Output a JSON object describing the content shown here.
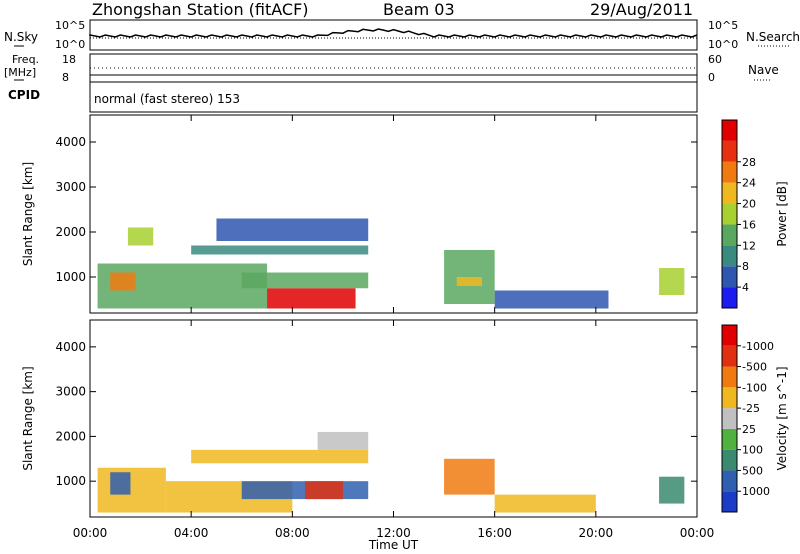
{
  "header": {
    "station": "Zhongshan Station (fitACF)",
    "beam": "Beam 03",
    "date": "29/Aug/2011"
  },
  "panels": {
    "nsky": {
      "label": "N.Sky",
      "tick_top": "10^5",
      "tick_bottom": "10^0",
      "right_label": "N.Search",
      "right_tick_top": "10^5",
      "right_tick_bottom": "10^0"
    },
    "freq": {
      "label_line1": "Freq.",
      "label_line2": "[MHz]",
      "tick_top": "18",
      "tick_bottom": "8",
      "right_label": "Nave",
      "right_tick_top": "60",
      "right_tick_bottom": "0"
    },
    "cpid": {
      "label": "CPID",
      "text": "normal (fast stereo) 153"
    }
  },
  "chart_data": [
    {
      "type": "heatmap",
      "title": "",
      "xlabel": "Time UT",
      "ylabel": "Slant Range [km]",
      "x_ticks": [
        "00:00",
        "04:00",
        "08:00",
        "12:00",
        "16:00",
        "20:00",
        "00:00"
      ],
      "x_range_hours": [
        0,
        24
      ],
      "y_ticks": [
        1000,
        2000,
        3000,
        4000
      ],
      "ylim": [
        200,
        4600
      ],
      "colorbar_label": "Power [dB]",
      "colorbar_ticks": [
        4,
        8,
        12,
        16,
        20,
        24,
        28
      ],
      "colorbar_colors": [
        "#1c1cf0",
        "#2f56b0",
        "#3a8a80",
        "#5aa860",
        "#a8d030",
        "#f0b820",
        "#f07a10",
        "#e83010",
        "#e00000"
      ],
      "regions": [
        {
          "t0": 0.3,
          "t1": 3.5,
          "r0": 300,
          "r1": 1300,
          "v": 14
        },
        {
          "t0": 0.8,
          "t1": 1.8,
          "r0": 700,
          "r1": 1100,
          "v": 26
        },
        {
          "t0": 1.5,
          "t1": 2.5,
          "r0": 1700,
          "r1": 2100,
          "v": 16
        },
        {
          "t0": 3.5,
          "t1": 7,
          "r0": 300,
          "r1": 1300,
          "v": 12
        },
        {
          "t0": 4,
          "t1": 11,
          "r0": 1500,
          "r1": 1700,
          "v": 8
        },
        {
          "t0": 7,
          "t1": 10.5,
          "r0": 300,
          "r1": 750,
          "v": 29
        },
        {
          "t0": 6,
          "t1": 11,
          "r0": 750,
          "r1": 1100,
          "v": 12
        },
        {
          "t0": 5,
          "t1": 11,
          "r0": 1800,
          "r1": 2300,
          "v": 6
        },
        {
          "t0": 14,
          "t1": 16,
          "r0": 400,
          "r1": 1600,
          "v": 14
        },
        {
          "t0": 14.5,
          "t1": 15.5,
          "r0": 800,
          "r1": 1000,
          "v": 22
        },
        {
          "t0": 16,
          "t1": 20.5,
          "r0": 300,
          "r1": 700,
          "v": 7
        },
        {
          "t0": 22.5,
          "t1": 23.5,
          "r0": 600,
          "r1": 1200,
          "v": 16
        }
      ]
    },
    {
      "type": "heatmap",
      "title": "",
      "xlabel": "Time UT",
      "ylabel": "Slant Range [km]",
      "x_ticks": [
        "00:00",
        "04:00",
        "08:00",
        "12:00",
        "16:00",
        "20:00",
        "00:00"
      ],
      "x_range_hours": [
        0,
        24
      ],
      "y_ticks": [
        1000,
        2000,
        3000,
        4000
      ],
      "ylim": [
        200,
        4600
      ],
      "colorbar_label": "Velocity [m s^-1]",
      "colorbar_ticks": [
        1000,
        500,
        100,
        25,
        -25,
        -100,
        -500,
        -1000
      ],
      "colorbar_colors": [
        "#1c3cc8",
        "#2f5fb0",
        "#3a8a70",
        "#50b040",
        "#c0c0c0",
        "#f0b820",
        "#f07a10",
        "#e03010",
        "#e00000"
      ],
      "regions": [
        {
          "t0": 0.3,
          "t1": 3,
          "r0": 300,
          "r1": 1300,
          "v": -100
        },
        {
          "t0": 0.8,
          "t1": 1.6,
          "r0": 700,
          "r1": 1200,
          "v": 800
        },
        {
          "t0": 3,
          "t1": 8,
          "r0": 300,
          "r1": 1000,
          "v": -100
        },
        {
          "t0": 6,
          "t1": 11,
          "r0": 600,
          "r1": 1000,
          "v": 500
        },
        {
          "t0": 4,
          "t1": 11,
          "r0": 1400,
          "r1": 1700,
          "v": -60
        },
        {
          "t0": 9,
          "t1": 11,
          "r0": 1700,
          "r1": 2100,
          "v": 0
        },
        {
          "t0": 8.5,
          "t1": 10,
          "r0": 600,
          "r1": 1000,
          "v": -900
        },
        {
          "t0": 14,
          "t1": 16,
          "r0": 700,
          "r1": 1500,
          "v": -500
        },
        {
          "t0": 16,
          "t1": 20,
          "r0": 300,
          "r1": 700,
          "v": -80
        },
        {
          "t0": 22.5,
          "t1": 23.5,
          "r0": 500,
          "r1": 1100,
          "v": 200
        }
      ]
    }
  ]
}
